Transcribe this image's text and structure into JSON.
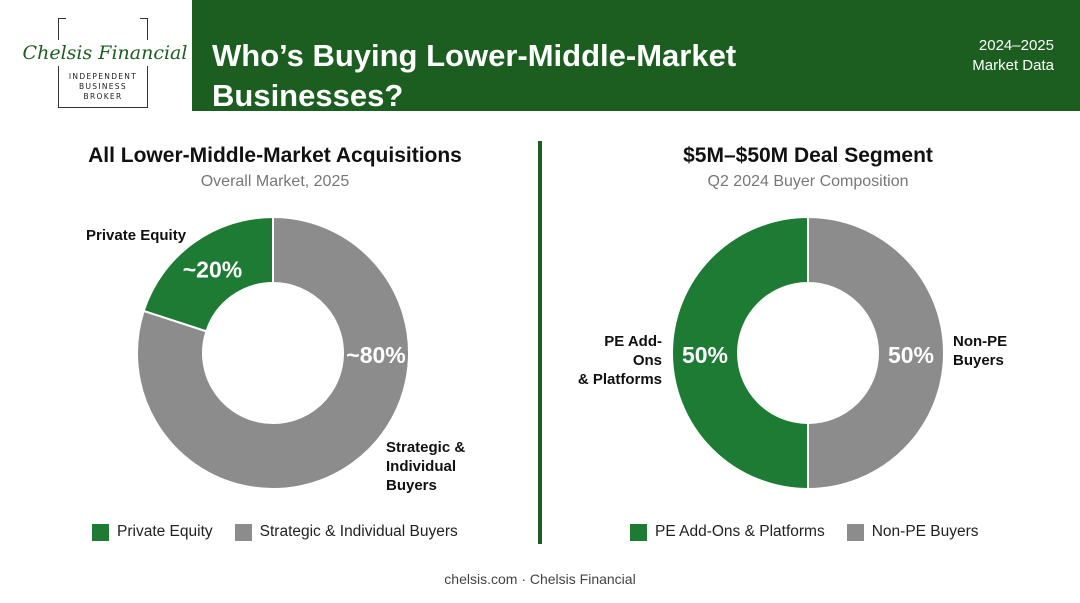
{
  "brand": {
    "name": "Chelsis Financial",
    "tagline_line1": "INDEPENDENT",
    "tagline_line2": "BUSINESS",
    "tagline_line3": "BROKER"
  },
  "header": {
    "title": "Who’s Buying Lower-Middle-Market Businesses?",
    "period_line1": "2024–2025",
    "period_line2": "Market Data"
  },
  "colors": {
    "green": "#1e7b34",
    "gray": "#8c8c8c",
    "header_green": "#1b5e20"
  },
  "chart_data": [
    {
      "type": "pie",
      "title": "All Lower-Middle-Market Acquisitions",
      "subtitle": "Overall Market, 2025",
      "slices": [
        {
          "name": "Private Equity",
          "value": 20,
          "label": "~20%",
          "color": "#1e7b34"
        },
        {
          "name": "Strategic & Individual Buyers",
          "value": 80,
          "label": "~80%",
          "color": "#8c8c8c"
        }
      ],
      "outer_labels": {
        "pe_line1": "Private Equity",
        "strat_line1": "Strategic &",
        "strat_line2": "Individual",
        "strat_line3": "Buyers"
      },
      "legend": [
        "Private Equity",
        "Strategic & Individual Buyers"
      ],
      "legend_position": "bottom"
    },
    {
      "type": "pie",
      "title": "$5M–$50M Deal Segment",
      "subtitle": "Q2 2024 Buyer Composition",
      "slices": [
        {
          "name": "PE Add-Ons & Platforms",
          "value": 50,
          "label": "50%",
          "color": "#1e7b34"
        },
        {
          "name": "Non-PE Buyers",
          "value": 50,
          "label": "50%",
          "color": "#8c8c8c"
        }
      ],
      "outer_labels": {
        "pe_line1": "PE Add-Ons",
        "pe_line2": "& Platforms",
        "non_line1": "Non-PE",
        "non_line2": "Buyers"
      },
      "legend": [
        "PE Add-Ons & Platforms",
        "Non-PE Buyers"
      ],
      "legend_position": "bottom"
    }
  ],
  "footer": {
    "text": "chelsis.com · Chelsis Financial"
  }
}
